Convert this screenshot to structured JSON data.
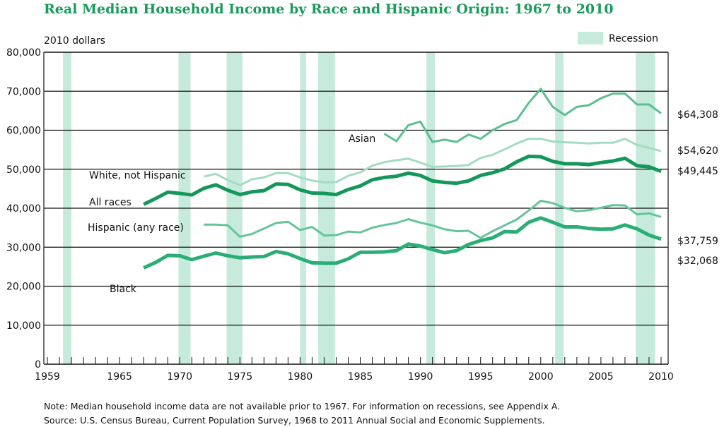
{
  "chart_data": {
    "type": "line",
    "title": "Real Median Household Income by Race and Hispanic Origin: 1967 to 2010",
    "ylabel": "2010 dollars",
    "xlabel": "",
    "xlim": [
      1959,
      2010
    ],
    "ylim": [
      0,
      80000
    ],
    "x_ticks": [
      "1959",
      "1965",
      "1970",
      "1975",
      "1980",
      "1985",
      "1990",
      "1995",
      "2000",
      "2005",
      "2010"
    ],
    "y_ticks": [
      "0",
      "10,000",
      "20,000",
      "30,000",
      "40,000",
      "50,000",
      "60,000",
      "70,000",
      "80,000"
    ],
    "grid": "horizontal",
    "legend": {
      "label": "Recession",
      "placement": "top-right"
    },
    "recessions": [
      [
        1960.3,
        1961.0
      ],
      [
        1969.9,
        1970.9
      ],
      [
        1973.9,
        1975.2
      ],
      [
        1980.0,
        1980.5
      ],
      [
        1981.5,
        1982.9
      ],
      [
        1990.5,
        1991.2
      ],
      [
        2001.2,
        2001.9
      ],
      [
        2007.9,
        2009.5
      ]
    ],
    "colors": {
      "title": "#1a9a5c",
      "recession": "#c6eadc",
      "all_races": "#14985a",
      "black": "#2aae76",
      "asian": "#5cbf92",
      "hispanic": "#66c49a",
      "white": "#a3dcc2"
    },
    "series": [
      {
        "name": "Asian",
        "end_label": "$64,308",
        "key": "asian",
        "width": 3,
        "start": 1987,
        "values": [
          59100,
          57200,
          61300,
          62200,
          57000,
          57600,
          57000,
          58900,
          57800,
          60000,
          61600,
          62600,
          67000,
          70600,
          66000,
          63900,
          66000,
          66400,
          68200,
          69400,
          69400,
          66600,
          66600,
          64308
        ]
      },
      {
        "name": "White, not Hispanic",
        "end_label": "$54,620",
        "key": "white",
        "width": 3,
        "start": 1972,
        "values": [
          48100,
          48800,
          47200,
          45900,
          47400,
          47900,
          49000,
          49000,
          47900,
          47100,
          46600,
          46700,
          48300,
          49200,
          50900,
          51800,
          52300,
          52700,
          51700,
          50600,
          50700,
          50800,
          51100,
          52900,
          53700,
          55100,
          56600,
          57800,
          57800,
          57100,
          56900,
          56800,
          56600,
          56800,
          56800,
          57800,
          56200,
          55500,
          54620
        ]
      },
      {
        "name": "All races",
        "end_label": "$49,445",
        "key": "all_races",
        "width": 5,
        "start": 1967,
        "values": [
          41000,
          42500,
          44100,
          43800,
          43400,
          45100,
          46000,
          44600,
          43500,
          44200,
          44500,
          46200,
          46100,
          44700,
          43900,
          43800,
          43500,
          44800,
          45700,
          47300,
          47900,
          48200,
          49000,
          48400,
          47000,
          46600,
          46400,
          47000,
          48400,
          49100,
          50100,
          51900,
          53300,
          53200,
          52000,
          51400,
          51400,
          51200,
          51700,
          52100,
          52800,
          50900,
          50600,
          49445
        ]
      },
      {
        "name": "Hispanic (any race)",
        "end_label": "$37,759",
        "key": "hispanic",
        "width": 3,
        "start": 1972,
        "values": [
          35800,
          35800,
          35600,
          32700,
          33400,
          34800,
          36200,
          36500,
          34400,
          35200,
          33000,
          33100,
          34000,
          33800,
          35000,
          35700,
          36200,
          37200,
          36300,
          35600,
          34600,
          34100,
          34200,
          32400,
          34100,
          35600,
          37100,
          39400,
          41900,
          41300,
          40100,
          39200,
          39500,
          40100,
          40800,
          40700,
          38400,
          38700,
          37759
        ]
      },
      {
        "name": "Black",
        "end_label": "$32,068",
        "key": "black",
        "width": 5,
        "start": 1967,
        "values": [
          24700,
          26100,
          27900,
          27800,
          26800,
          27700,
          28500,
          27800,
          27300,
          27500,
          27600,
          28900,
          28300,
          27100,
          26000,
          25900,
          25900,
          27000,
          28700,
          28700,
          28800,
          29100,
          30800,
          30300,
          29400,
          28600,
          29100,
          30700,
          31700,
          32400,
          34000,
          33900,
          36400,
          37500,
          36400,
          35200,
          35200,
          34800,
          34600,
          34700,
          35700,
          34700,
          33100,
          32068
        ]
      }
    ],
    "notes": [
      "Note: Median household income data are not available prior to 1967. For information on recessions, see Appendix A.",
      "Source: U.S. Census Bureau, Current Population Survey, 1968 to 2011 Annual Social and Economic Supplements."
    ]
  }
}
